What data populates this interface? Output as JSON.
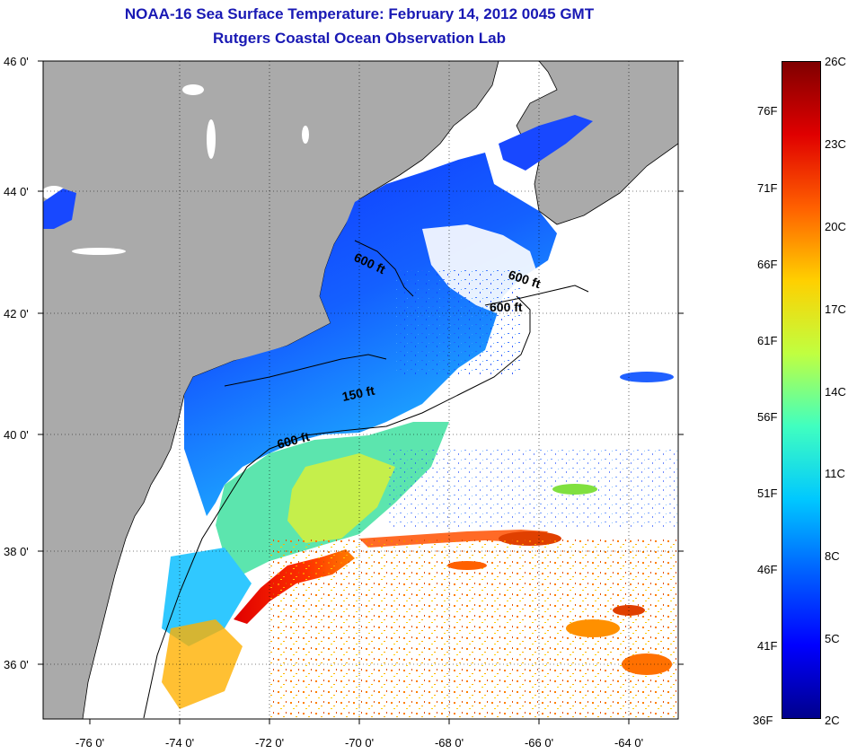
{
  "title": "NOAA-16 Sea Surface Temperature:  February 14, 2012 0045 GMT",
  "subtitle": "Rutgers Coastal Ocean Observation Lab",
  "lat_ticks": [
    "46 0'",
    "44 0'",
    "42 0'",
    "40 0'",
    "38 0'",
    "36 0'"
  ],
  "lon_ticks": [
    "-76 0'",
    "-74 0'",
    "-72 0'",
    "-70 0'",
    "-68 0'",
    "-66 0'",
    "-64 0'"
  ],
  "contour_labels": [
    "600 ft",
    "600 ft",
    "600 ft",
    "150 ft",
    "600 ft"
  ],
  "colorbar": {
    "celsius": [
      "26C",
      "23C",
      "20C",
      "17C",
      "14C",
      "11C",
      "8C",
      "5C",
      "2C"
    ],
    "fahrenheit": [
      "76F",
      "71F",
      "66F",
      "61F",
      "56F",
      "51F",
      "46F",
      "41F",
      "36F"
    ],
    "colors": [
      "#00008c",
      "#0000ff",
      "#0060ff",
      "#00c8ff",
      "#40ffc0",
      "#c0ff40",
      "#ffd000",
      "#ff6000",
      "#e00000",
      "#800000"
    ]
  },
  "colors": {
    "land": "#aaaaaa",
    "title": "#1919b4",
    "cloud": "#ffffff"
  }
}
